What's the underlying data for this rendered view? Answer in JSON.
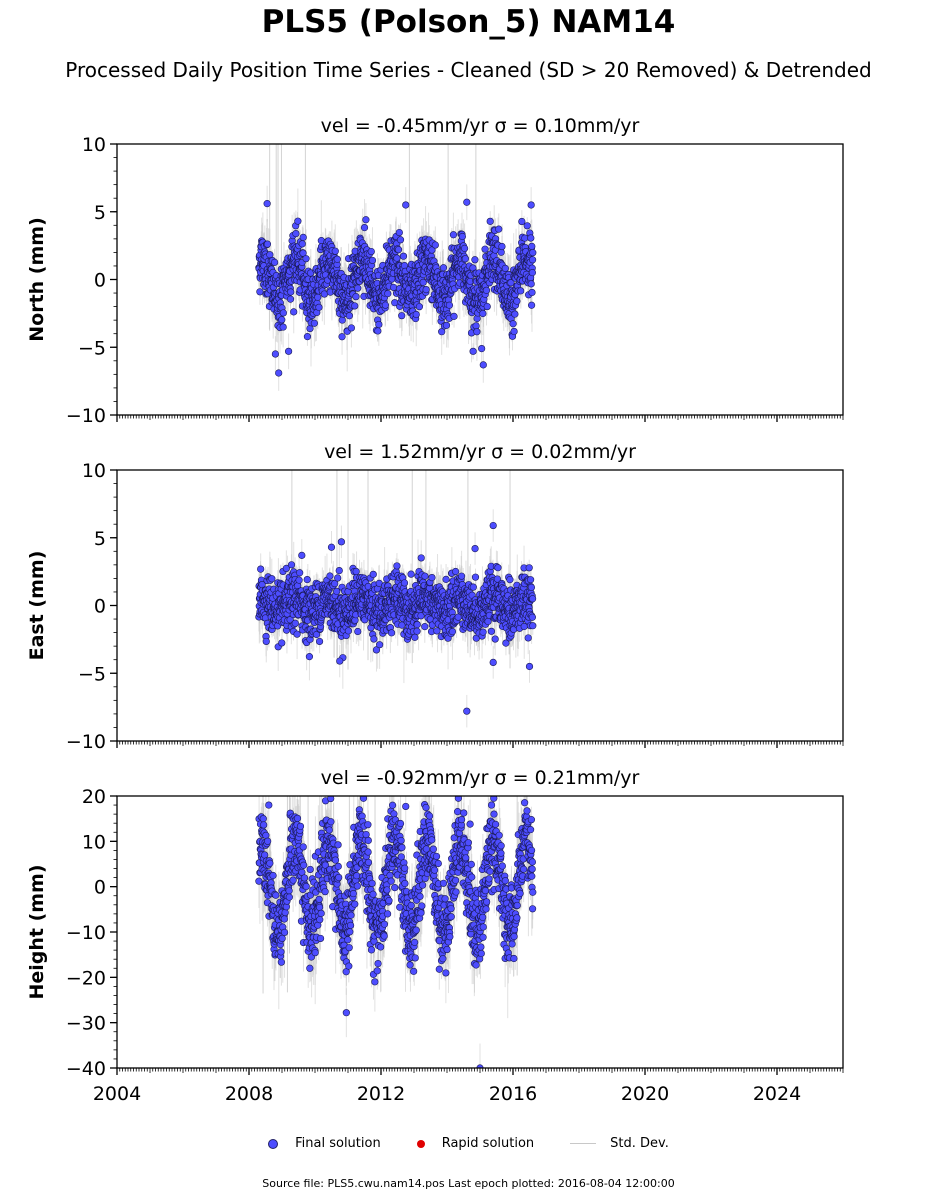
{
  "title": "PLS5 (Polson_5) NAM14",
  "subtitle": "Processed Daily Position Time Series - Cleaned (SD > 20 Removed) & Detrended",
  "footer": "Source file: PLS5.cwu.nam14.pos  Last epoch plotted: 2016-08-04 12:00:00",
  "legend": {
    "final": "Final solution",
    "rapid": "Rapid solution",
    "std": "Std. Dev."
  },
  "colors": {
    "final_fill": "#4d4dff",
    "final_edge": "#1a1a55",
    "rapid": "#e00000",
    "std": "#c8c8c8"
  },
  "chart_data": [
    {
      "type": "scatter",
      "title": "vel = -0.45mm/yr   σ = 0.10mm/yr",
      "ylabel": "North (mm)",
      "xlim": [
        2004,
        2026
      ],
      "ylim": [
        -10,
        10
      ],
      "yticks": [
        -10,
        -5,
        0,
        5,
        10
      ],
      "xticks": [
        2004,
        2008,
        2012,
        2016,
        2020,
        2024
      ],
      "data_range": [
        2008.3,
        2016.6
      ],
      "seasonal_amplitude": 1.5,
      "noise": 1.1,
      "outliers": [
        {
          "x": 2008.55,
          "y": 5.6
        },
        {
          "x": 2008.9,
          "y": -6.9
        },
        {
          "x": 2008.8,
          "y": -5.5
        },
        {
          "x": 2009.2,
          "y": -5.3
        },
        {
          "x": 2012.75,
          "y": 5.5
        },
        {
          "x": 2014.6,
          "y": 5.7
        },
        {
          "x": 2015.1,
          "y": -6.3
        },
        {
          "x": 2015.05,
          "y": -5.1
        },
        {
          "x": 2016.55,
          "y": 5.5
        }
      ]
    },
    {
      "type": "scatter",
      "title": "vel = 1.52mm/yr   σ = 0.02mm/yr",
      "ylabel": "East (mm)",
      "xlim": [
        2004,
        2026
      ],
      "ylim": [
        -10,
        10
      ],
      "yticks": [
        -10,
        -5,
        0,
        5,
        10
      ],
      "xticks": [
        2004,
        2008,
        2012,
        2016,
        2020,
        2024
      ],
      "data_range": [
        2008.3,
        2016.6
      ],
      "seasonal_amplitude": 0.5,
      "noise": 1.0,
      "outliers": [
        {
          "x": 2009.6,
          "y": 3.7
        },
        {
          "x": 2010.5,
          "y": 4.3
        },
        {
          "x": 2010.8,
          "y": 4.7
        },
        {
          "x": 2010.75,
          "y": -4.1
        },
        {
          "x": 2014.85,
          "y": 4.2
        },
        {
          "x": 2015.4,
          "y": 5.9
        },
        {
          "x": 2014.6,
          "y": -7.8
        },
        {
          "x": 2015.4,
          "y": -4.2
        },
        {
          "x": 2016.5,
          "y": -4.5
        }
      ]
    },
    {
      "type": "scatter",
      "title": "vel = -0.92mm/yr   σ = 0.21mm/yr",
      "ylabel": "Height (mm)",
      "xlim": [
        2004,
        2026
      ],
      "ylim": [
        -40,
        20
      ],
      "yticks": [
        -40,
        -30,
        -20,
        -10,
        0,
        10,
        20
      ],
      "xticks": [
        2004,
        2008,
        2012,
        2016,
        2020,
        2024
      ],
      "xticklabels": [
        "2004",
        "2008",
        "2012",
        "2016",
        "2020",
        "2024"
      ],
      "data_range": [
        2008.3,
        2016.6
      ],
      "seasonal_amplitude": 10,
      "noise": 4.5,
      "outliers": [
        {
          "x": 2008.6,
          "y": 18.0
        },
        {
          "x": 2012.75,
          "y": 17.7
        },
        {
          "x": 2015.35,
          "y": 18.0
        },
        {
          "x": 2014.7,
          "y": 13.8
        },
        {
          "x": 2010.95,
          "y": -27.8
        },
        {
          "x": 2015.0,
          "y": -40.0
        }
      ]
    }
  ]
}
